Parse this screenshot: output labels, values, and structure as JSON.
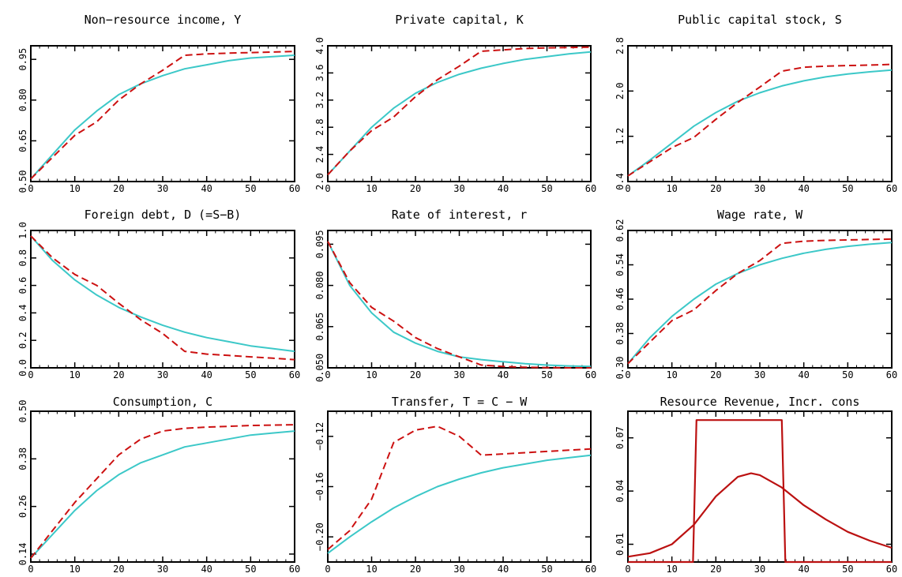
{
  "colors": {
    "solid": "#3cc8c8",
    "dashed": "#cc1111",
    "resource": "#bb1111",
    "axis": "#000000"
  },
  "chart_data": [
    {
      "type": "line",
      "title": "Non−resource income, Y",
      "xlim": [
        0,
        60
      ],
      "ylim": [
        0.5,
        1.0
      ],
      "xticks": [
        0,
        10,
        20,
        30,
        40,
        50,
        60
      ],
      "yticks": [
        0.5,
        0.65,
        0.8,
        0.95
      ],
      "ytick_labels": [
        "0.50",
        "0.65",
        "0.80",
        "0.95"
      ],
      "series": [
        {
          "style": "solid",
          "x": [
            0,
            5,
            10,
            15,
            20,
            25,
            30,
            35,
            40,
            45,
            50,
            55,
            60
          ],
          "y": [
            0.51,
            0.6,
            0.69,
            0.76,
            0.82,
            0.86,
            0.89,
            0.915,
            0.93,
            0.945,
            0.955,
            0.96,
            0.965
          ]
        },
        {
          "style": "dashed",
          "x": [
            0,
            5,
            10,
            15,
            20,
            25,
            30,
            35,
            40,
            45,
            50,
            55,
            60
          ],
          "y": [
            0.51,
            0.59,
            0.67,
            0.72,
            0.8,
            0.86,
            0.91,
            0.965,
            0.97,
            0.973,
            0.975,
            0.977,
            0.979
          ]
        }
      ]
    },
    {
      "type": "line",
      "title": "Private capital, K",
      "xlim": [
        0,
        60
      ],
      "ylim": [
        2.0,
        4.0
      ],
      "xticks": [
        0,
        10,
        20,
        30,
        40,
        50,
        60
      ],
      "yticks": [
        2.0,
        2.4,
        2.8,
        3.2,
        3.6,
        4.0
      ],
      "ytick_labels": [
        "2.0",
        "2.4",
        "2.8",
        "3.2",
        "3.6",
        "4.0"
      ],
      "series": [
        {
          "style": "solid",
          "x": [
            0,
            5,
            10,
            15,
            20,
            25,
            30,
            35,
            40,
            45,
            50,
            55,
            60
          ],
          "y": [
            2.1,
            2.45,
            2.8,
            3.08,
            3.3,
            3.46,
            3.58,
            3.67,
            3.74,
            3.8,
            3.84,
            3.88,
            3.91
          ]
        },
        {
          "style": "dashed",
          "x": [
            0,
            5,
            10,
            15,
            20,
            25,
            30,
            35,
            40,
            45,
            50,
            55,
            60
          ],
          "y": [
            2.1,
            2.45,
            2.75,
            2.95,
            3.25,
            3.5,
            3.7,
            3.92,
            3.94,
            3.96,
            3.97,
            3.975,
            3.98
          ]
        }
      ]
    },
    {
      "type": "line",
      "title": "Public capital stock, S",
      "xlim": [
        0,
        60
      ],
      "ylim": [
        0.4,
        2.8
      ],
      "xticks": [
        0,
        10,
        20,
        30,
        40,
        50,
        60
      ],
      "yticks": [
        0.4,
        1.2,
        2.0,
        2.8
      ],
      "ytick_labels": [
        "0.4",
        "1.2",
        "2.0",
        "2.8"
      ],
      "series": [
        {
          "style": "solid",
          "x": [
            0,
            5,
            10,
            15,
            20,
            25,
            30,
            35,
            40,
            45,
            50,
            55,
            60
          ],
          "y": [
            0.5,
            0.78,
            1.08,
            1.38,
            1.62,
            1.82,
            1.97,
            2.09,
            2.18,
            2.25,
            2.3,
            2.34,
            2.37
          ]
        },
        {
          "style": "dashed",
          "x": [
            0,
            5,
            10,
            15,
            20,
            25,
            30,
            35,
            40,
            45,
            50,
            55,
            60
          ],
          "y": [
            0.5,
            0.75,
            1.0,
            1.18,
            1.5,
            1.8,
            2.07,
            2.35,
            2.42,
            2.44,
            2.45,
            2.46,
            2.47
          ]
        }
      ]
    },
    {
      "type": "line",
      "title": "Foreign debt, D (=S−B)",
      "xlim": [
        0,
        60
      ],
      "ylim": [
        0.0,
        1.0
      ],
      "xticks": [
        0,
        10,
        20,
        30,
        40,
        50,
        60
      ],
      "yticks": [
        0.0,
        0.2,
        0.4,
        0.6,
        0.8,
        1.0
      ],
      "ytick_labels": [
        "0.0",
        "0.2",
        "0.4",
        "0.6",
        "0.8",
        "1.0"
      ],
      "series": [
        {
          "style": "solid",
          "x": [
            0,
            5,
            10,
            15,
            20,
            25,
            30,
            35,
            40,
            45,
            50,
            55,
            60
          ],
          "y": [
            0.96,
            0.78,
            0.64,
            0.53,
            0.44,
            0.37,
            0.31,
            0.26,
            0.22,
            0.19,
            0.16,
            0.14,
            0.12
          ]
        },
        {
          "style": "dashed",
          "x": [
            0,
            5,
            10,
            15,
            20,
            25,
            30,
            35,
            40,
            45,
            50,
            55,
            60
          ],
          "y": [
            0.96,
            0.8,
            0.68,
            0.6,
            0.47,
            0.35,
            0.25,
            0.12,
            0.1,
            0.09,
            0.08,
            0.07,
            0.06
          ]
        }
      ]
    },
    {
      "type": "line",
      "title": "Rate of interest, r",
      "xlim": [
        0,
        60
      ],
      "ylim": [
        0.05,
        0.1
      ],
      "xticks": [
        0,
        10,
        20,
        30,
        40,
        50,
        60
      ],
      "yticks": [
        0.05,
        0.065,
        0.08,
        0.095
      ],
      "ytick_labels": [
        "0.050",
        "0.065",
        "0.080",
        "0.095"
      ],
      "series": [
        {
          "style": "solid",
          "x": [
            0,
            5,
            10,
            15,
            20,
            25,
            30,
            35,
            40,
            45,
            50,
            55,
            60
          ],
          "y": [
            0.096,
            0.08,
            0.07,
            0.063,
            0.059,
            0.056,
            0.054,
            0.053,
            0.0522,
            0.0515,
            0.051,
            0.0507,
            0.0505
          ]
        },
        {
          "style": "dashed",
          "x": [
            0,
            5,
            10,
            15,
            20,
            25,
            30,
            35,
            40,
            45,
            50,
            55,
            60
          ],
          "y": [
            0.096,
            0.081,
            0.072,
            0.067,
            0.061,
            0.057,
            0.054,
            0.051,
            0.0505,
            0.0502,
            0.0501,
            0.05,
            0.05
          ]
        }
      ]
    },
    {
      "type": "line",
      "title": "Wage rate, W",
      "xlim": [
        0,
        60
      ],
      "ylim": [
        0.3,
        0.62
      ],
      "xticks": [
        0,
        10,
        20,
        30,
        40,
        50,
        60
      ],
      "yticks": [
        0.3,
        0.38,
        0.46,
        0.54,
        0.62
      ],
      "ytick_labels": [
        "0.30",
        "0.38",
        "0.46",
        "0.54",
        "0.62"
      ],
      "series": [
        {
          "style": "solid",
          "x": [
            0,
            5,
            10,
            15,
            20,
            25,
            30,
            35,
            40,
            45,
            50,
            55,
            60
          ],
          "y": [
            0.31,
            0.37,
            0.42,
            0.46,
            0.495,
            0.52,
            0.54,
            0.555,
            0.567,
            0.576,
            0.583,
            0.588,
            0.592
          ]
        },
        {
          "style": "dashed",
          "x": [
            0,
            5,
            10,
            15,
            20,
            25,
            30,
            35,
            40,
            45,
            50,
            55,
            60
          ],
          "y": [
            0.31,
            0.36,
            0.41,
            0.435,
            0.48,
            0.52,
            0.55,
            0.59,
            0.595,
            0.597,
            0.598,
            0.599,
            0.6
          ]
        }
      ]
    },
    {
      "type": "line",
      "title": "Consumption, C",
      "xlim": [
        0,
        60
      ],
      "ylim": [
        0.12,
        0.5
      ],
      "xticks": [
        0,
        10,
        20,
        30,
        40,
        50,
        60
      ],
      "yticks": [
        0.14,
        0.26,
        0.38,
        0.5
      ],
      "ytick_labels": [
        "0.14",
        "0.26",
        "0.38",
        "0.50"
      ],
      "series": [
        {
          "style": "solid",
          "x": [
            0,
            5,
            10,
            15,
            20,
            25,
            30,
            35,
            40,
            45,
            50,
            55,
            60
          ],
          "y": [
            0.13,
            0.19,
            0.25,
            0.3,
            0.34,
            0.37,
            0.39,
            0.41,
            0.42,
            0.43,
            0.44,
            0.445,
            0.45
          ]
        },
        {
          "style": "dashed",
          "x": [
            0,
            5,
            10,
            15,
            20,
            25,
            30,
            35,
            40,
            45,
            50,
            55,
            60
          ],
          "y": [
            0.13,
            0.2,
            0.27,
            0.33,
            0.39,
            0.43,
            0.45,
            0.457,
            0.46,
            0.462,
            0.464,
            0.465,
            0.466
          ]
        }
      ]
    },
    {
      "type": "line",
      "title": "Transfer, T = C − W",
      "xlim": [
        0,
        60
      ],
      "ylim": [
        -0.22,
        -0.1
      ],
      "xticks": [
        0,
        10,
        20,
        30,
        40,
        50,
        60
      ],
      "yticks": [
        -0.2,
        -0.16,
        -0.12
      ],
      "ytick_labels": [
        "−0.20",
        "−0.16",
        "−0.12"
      ],
      "series": [
        {
          "style": "solid",
          "x": [
            0,
            5,
            10,
            15,
            20,
            25,
            30,
            35,
            40,
            45,
            50,
            55,
            60
          ],
          "y": [
            -0.213,
            -0.2,
            -0.188,
            -0.177,
            -0.168,
            -0.16,
            -0.154,
            -0.149,
            -0.145,
            -0.142,
            -0.139,
            -0.137,
            -0.135
          ]
        },
        {
          "style": "dashed",
          "x": [
            0,
            5,
            10,
            15,
            20,
            25,
            30,
            35,
            40,
            45,
            50,
            55,
            60
          ],
          "y": [
            -0.21,
            -0.195,
            -0.17,
            -0.125,
            -0.115,
            -0.112,
            -0.12,
            -0.135,
            -0.134,
            -0.133,
            -0.132,
            -0.131,
            -0.13
          ]
        }
      ]
    },
    {
      "type": "line",
      "title": "Resource Revenue, Incr. cons",
      "xlim": [
        0,
        60
      ],
      "ylim": [
        0.0,
        0.085
      ],
      "xticks": [
        0,
        10,
        20,
        30,
        40,
        50,
        60
      ],
      "yticks": [
        0.01,
        0.04,
        0.07
      ],
      "ytick_labels": [
        "0.01",
        "0.04",
        "0.07"
      ],
      "series": [
        {
          "style": "resource",
          "x": [
            0,
            14.8,
            15.2,
            15.6,
            35.0,
            35.4,
            35.8,
            60
          ],
          "y": [
            0.0,
            0.0,
            0.04,
            0.08,
            0.08,
            0.04,
            0.0,
            0.0
          ]
        },
        {
          "style": "resource",
          "x": [
            0,
            5,
            10,
            15,
            20,
            25,
            28,
            30,
            35,
            40,
            45,
            50,
            55,
            60
          ],
          "y": [
            0.003,
            0.005,
            0.01,
            0.021,
            0.037,
            0.048,
            0.05,
            0.049,
            0.042,
            0.032,
            0.024,
            0.017,
            0.012,
            0.008
          ]
        }
      ]
    }
  ]
}
